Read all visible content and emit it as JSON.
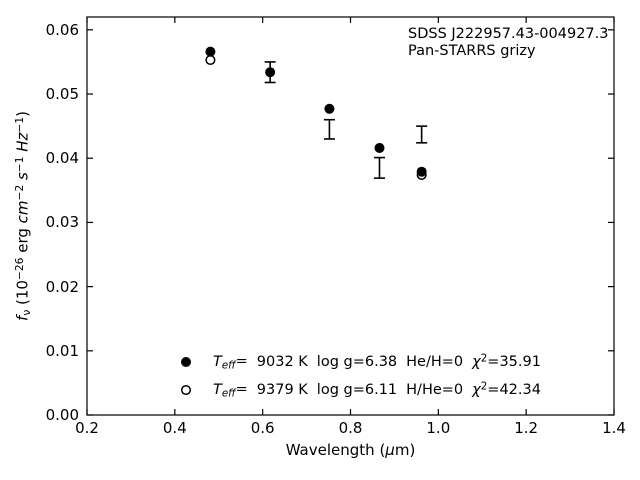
{
  "colors": {
    "foreground": "#000000",
    "background": "#ffffff"
  },
  "chart_data": {
    "type": "scatter",
    "grid": false,
    "xlabel": "Wavelength (μm)",
    "ylabel": "f_ν (10⁻²⁶ erg cm⁻² s⁻¹ Hz⁻¹)",
    "xlabel_parts": {
      "prefix": "Wavelength (",
      "mu": "μ",
      "suffix": "m)"
    },
    "ylabel_parts": {
      "f": "f",
      "nu": "ν",
      "open": " (10",
      "exp": "−26",
      "erg": " erg",
      "cm": " cm",
      "cm_exp": "−2",
      "s": " s",
      "s_exp": "−1",
      "hz": " Hz",
      "hz_exp": "−1",
      "close": ")"
    },
    "xlim": [
      0.2,
      1.4
    ],
    "ylim": [
      0,
      0.062
    ],
    "xticks": [
      0.2,
      0.4,
      0.6,
      0.8,
      1.0,
      1.2,
      1.4
    ],
    "xtick_labels": [
      "0.2",
      "0.4",
      "0.6",
      "0.8",
      "1.0",
      "1.2",
      "1.4"
    ],
    "yticks": [
      0.0,
      0.01,
      0.02,
      0.03,
      0.04,
      0.05,
      0.06
    ],
    "ytick_labels": [
      "0.00",
      "0.01",
      "0.02",
      "0.03",
      "0.04",
      "0.05",
      "0.06"
    ],
    "tick_style": "inward, all four spines, no minor ticks",
    "annotation": {
      "line1": "SDSS J222957.43-004927.3",
      "line2": "Pan-STARRS grizy",
      "position": "top-right inside axes"
    },
    "series": [
      {
        "name": "model_Teff_9032K",
        "marker": "filled-circle",
        "x": [
          0.481,
          0.617,
          0.752,
          0.866,
          0.962
        ],
        "y": [
          0.0566,
          0.0534,
          0.0477,
          0.0416,
          0.0379
        ]
      },
      {
        "name": "model_Teff_9379K",
        "marker": "open-circle",
        "x": [
          0.481,
          0.962
        ],
        "y": [
          0.0553,
          0.0374
        ]
      },
      {
        "name": "observed_photometry",
        "marker": "errorbar",
        "x": [
          0.617,
          0.752,
          0.866,
          0.962
        ],
        "y": [
          0.0534,
          0.0445,
          0.0385,
          0.0437
        ],
        "yerr": [
          0.0016,
          0.0015,
          0.0016,
          0.0013
        ]
      }
    ],
    "legend": {
      "position": "lower left inside axes",
      "frame": false,
      "entries": [
        {
          "marker": "filled-circle",
          "label": "T_eff=  9032 K  log g=6.38  He/H=0  χ²=35.91",
          "teff_symbol": "T",
          "teff_sub": "eff",
          "eq": "=",
          "teff_value": "9032 K",
          "logg": "log g=6.38",
          "composition": "He/H=0",
          "chi_symbol": "χ",
          "chi_sup": "2",
          "chi_value": "=35.91"
        },
        {
          "marker": "open-circle",
          "label": "T_eff=  9379 K  log g=6.11  H/He=0  χ²=42.34",
          "teff_symbol": "T",
          "teff_sub": "eff",
          "eq": "=",
          "teff_value": "9379 K",
          "logg": "log g=6.11",
          "composition": "H/He=0",
          "chi_symbol": "χ",
          "chi_sup": "2",
          "chi_value": "=42.34"
        }
      ]
    }
  }
}
